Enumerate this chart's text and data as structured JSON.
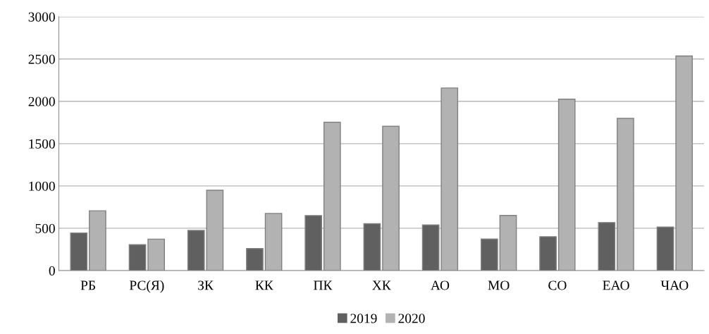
{
  "chart_data": {
    "type": "bar",
    "categories": [
      "РБ",
      "РС(Я)",
      "ЗК",
      "КК",
      "ПК",
      "ХК",
      "АО",
      "МО",
      "СО",
      "ЕАО",
      "ЧАО"
    ],
    "series": [
      {
        "name": "2019",
        "color": "#606060",
        "values": [
          444,
          306,
          474,
          260,
          650,
          553,
          539,
          372,
          400,
          567,
          514
        ]
      },
      {
        "name": "2020",
        "color": "#b2b2b2",
        "values": [
          706,
          371,
          949,
          675,
          1752,
          1705,
          2157,
          651,
          2025,
          1798,
          2535
        ]
      }
    ],
    "ylim": [
      0,
      3000
    ],
    "yticks": [
      0,
      500,
      1000,
      1500,
      2000,
      2500,
      3000
    ],
    "grid": "y",
    "legend": "bottom"
  }
}
